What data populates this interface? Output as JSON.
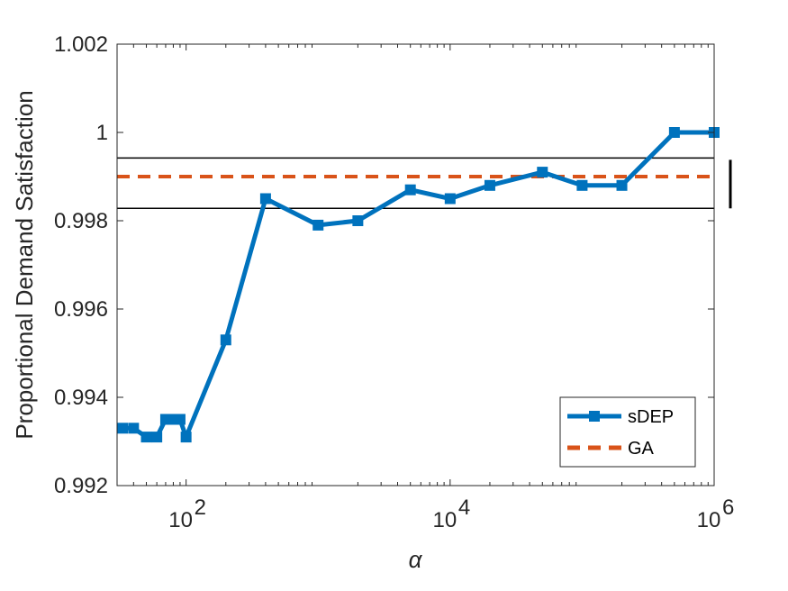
{
  "chart_data": {
    "type": "line",
    "xscale": "log",
    "xlim": [
      30,
      1000000
    ],
    "ylim": [
      0.992,
      1.002
    ],
    "xlabel": "α",
    "ylabel": "Proportional Demand Satisfaction",
    "xticks": [
      100,
      10000,
      1000000
    ],
    "xtick_labels": [
      {
        "base": "10",
        "exp": "2"
      },
      {
        "base": "10",
        "exp": "4"
      },
      {
        "base": "10",
        "exp": "6"
      }
    ],
    "yticks": [
      0.992,
      0.994,
      0.996,
      0.998,
      1,
      1.002
    ],
    "ytick_labels": [
      "0.992",
      "0.994",
      "0.996",
      "0.998",
      "1",
      "1.002"
    ],
    "grid": false,
    "legend_position": "bottom-right",
    "series": [
      {
        "name": "sDEP",
        "style": "solid-square-markers",
        "color": "#0072BD",
        "x": [
          30,
          40,
          50,
          60,
          70,
          80,
          90,
          100,
          200,
          400,
          1000,
          2000,
          5000,
          10000,
          20000,
          50000,
          100000,
          200000,
          500000,
          1000000
        ],
        "y": [
          0.9933,
          0.9933,
          0.9931,
          0.9931,
          0.9935,
          0.9935,
          0.9935,
          0.9931,
          0.9953,
          0.9985,
          0.9979,
          0.998,
          0.9987,
          0.9985,
          0.9988,
          0.9991,
          0.9988,
          0.9988,
          1.0,
          1.0
        ]
      },
      {
        "name": "GA",
        "style": "dashed",
        "color": "#D95319",
        "y_constant": 0.999,
        "band": [
          0.99828,
          0.99942
        ]
      }
    ],
    "band_color": "#000000"
  }
}
